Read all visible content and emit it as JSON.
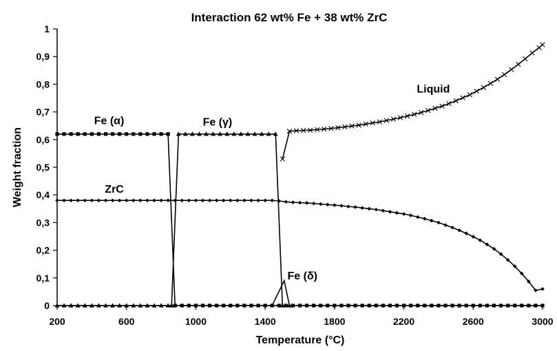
{
  "chart_data": {
    "type": "line",
    "title": "Interaction 62 wt% Fe + 38 wt% ZrC",
    "xlabel": "Temperature (°C)",
    "ylabel": "Weight fraction",
    "xlim": [
      200,
      3000
    ],
    "ylim": [
      0,
      1
    ],
    "x_ticks": [
      "200",
      "600",
      "1000",
      "1400",
      "1800",
      "2200",
      "2600",
      "3000"
    ],
    "y_ticks": [
      "0",
      "0,1",
      "0,2",
      "0,3",
      "0,4",
      "0,5",
      "0,6",
      "0,7",
      "0,8",
      "0,9",
      "1"
    ],
    "grid": false,
    "legend": "none",
    "series": [
      {
        "name": "Fe (α)",
        "marker": "square",
        "points": [
          [
            200,
            0.62
          ],
          [
            240,
            0.62
          ],
          [
            280,
            0.62
          ],
          [
            320,
            0.62
          ],
          [
            360,
            0.62
          ],
          [
            400,
            0.62
          ],
          [
            440,
            0.62
          ],
          [
            480,
            0.62
          ],
          [
            520,
            0.62
          ],
          [
            560,
            0.62
          ],
          [
            600,
            0.62
          ],
          [
            640,
            0.62
          ],
          [
            680,
            0.62
          ],
          [
            720,
            0.62
          ],
          [
            760,
            0.62
          ],
          [
            800,
            0.62
          ],
          [
            840,
            0.62
          ],
          [
            880,
            0
          ],
          [
            920,
            0
          ],
          [
            960,
            0
          ],
          [
            1000,
            0
          ],
          [
            1040,
            0
          ],
          [
            1080,
            0
          ],
          [
            1120,
            0
          ],
          [
            1160,
            0
          ],
          [
            1200,
            0
          ],
          [
            1240,
            0
          ],
          [
            1280,
            0
          ],
          [
            1320,
            0
          ],
          [
            1360,
            0
          ],
          [
            1400,
            0
          ],
          [
            1440,
            0
          ],
          [
            1480,
            0
          ],
          [
            1520,
            0
          ],
          [
            1560,
            0
          ],
          [
            1600,
            0
          ],
          [
            1640,
            0
          ],
          [
            1680,
            0
          ],
          [
            1720,
            0
          ],
          [
            1760,
            0
          ],
          [
            1800,
            0
          ],
          [
            1840,
            0
          ],
          [
            1880,
            0
          ],
          [
            1920,
            0
          ],
          [
            1960,
            0
          ],
          [
            2000,
            0
          ],
          [
            2040,
            0
          ],
          [
            2080,
            0
          ],
          [
            2120,
            0
          ],
          [
            2160,
            0
          ],
          [
            2200,
            0
          ],
          [
            2240,
            0
          ],
          [
            2280,
            0
          ],
          [
            2320,
            0
          ],
          [
            2360,
            0
          ],
          [
            2400,
            0
          ],
          [
            2440,
            0
          ],
          [
            2480,
            0
          ],
          [
            2520,
            0
          ],
          [
            2560,
            0
          ],
          [
            2600,
            0
          ],
          [
            2640,
            0
          ],
          [
            2680,
            0
          ],
          [
            2720,
            0
          ],
          [
            2760,
            0
          ],
          [
            2800,
            0
          ],
          [
            2840,
            0
          ],
          [
            2880,
            0
          ],
          [
            2920,
            0
          ],
          [
            2960,
            0
          ],
          [
            3000,
            0
          ]
        ]
      },
      {
        "name": "Fe (γ)",
        "marker": "triangle",
        "points": [
          [
            200,
            0
          ],
          [
            240,
            0
          ],
          [
            280,
            0
          ],
          [
            320,
            0
          ],
          [
            360,
            0
          ],
          [
            400,
            0
          ],
          [
            440,
            0
          ],
          [
            480,
            0
          ],
          [
            520,
            0
          ],
          [
            560,
            0
          ],
          [
            600,
            0
          ],
          [
            640,
            0
          ],
          [
            680,
            0
          ],
          [
            720,
            0
          ],
          [
            760,
            0
          ],
          [
            800,
            0
          ],
          [
            840,
            0
          ],
          [
            860,
            0
          ],
          [
            900,
            0.62
          ],
          [
            940,
            0.62
          ],
          [
            980,
            0.62
          ],
          [
            1020,
            0.62
          ],
          [
            1060,
            0.62
          ],
          [
            1100,
            0.62
          ],
          [
            1140,
            0.62
          ],
          [
            1180,
            0.62
          ],
          [
            1220,
            0.62
          ],
          [
            1260,
            0.62
          ],
          [
            1300,
            0.62
          ],
          [
            1340,
            0.62
          ],
          [
            1380,
            0.62
          ],
          [
            1420,
            0.62
          ],
          [
            1460,
            0.62
          ],
          [
            1500,
            0
          ],
          [
            1540,
            0
          ]
        ]
      },
      {
        "name": "ZrC",
        "marker": "diamond",
        "points": [
          [
            200,
            0.38
          ],
          [
            240,
            0.38
          ],
          [
            280,
            0.38
          ],
          [
            320,
            0.38
          ],
          [
            360,
            0.38
          ],
          [
            400,
            0.38
          ],
          [
            440,
            0.38
          ],
          [
            480,
            0.38
          ],
          [
            520,
            0.38
          ],
          [
            560,
            0.38
          ],
          [
            600,
            0.38
          ],
          [
            640,
            0.38
          ],
          [
            680,
            0.38
          ],
          [
            720,
            0.38
          ],
          [
            760,
            0.38
          ],
          [
            800,
            0.38
          ],
          [
            840,
            0.38
          ],
          [
            880,
            0.38
          ],
          [
            920,
            0.38
          ],
          [
            960,
            0.38
          ],
          [
            1000,
            0.38
          ],
          [
            1040,
            0.38
          ],
          [
            1080,
            0.38
          ],
          [
            1120,
            0.38
          ],
          [
            1160,
            0.38
          ],
          [
            1200,
            0.38
          ],
          [
            1240,
            0.38
          ],
          [
            1280,
            0.38
          ],
          [
            1320,
            0.38
          ],
          [
            1360,
            0.38
          ],
          [
            1400,
            0.38
          ],
          [
            1440,
            0.38
          ],
          [
            1480,
            0.378
          ],
          [
            1520,
            0.375
          ],
          [
            1560,
            0.373
          ],
          [
            1600,
            0.372
          ],
          [
            1640,
            0.371
          ],
          [
            1680,
            0.369
          ],
          [
            1720,
            0.367
          ],
          [
            1760,
            0.365
          ],
          [
            1800,
            0.363
          ],
          [
            1840,
            0.361
          ],
          [
            1880,
            0.358
          ],
          [
            1920,
            0.356
          ],
          [
            1960,
            0.353
          ],
          [
            2000,
            0.35
          ],
          [
            2040,
            0.347
          ],
          [
            2080,
            0.343
          ],
          [
            2120,
            0.339
          ],
          [
            2160,
            0.335
          ],
          [
            2200,
            0.331
          ],
          [
            2240,
            0.326
          ],
          [
            2280,
            0.32
          ],
          [
            2320,
            0.314
          ],
          [
            2360,
            0.307
          ],
          [
            2400,
            0.3
          ],
          [
            2440,
            0.291
          ],
          [
            2480,
            0.282
          ],
          [
            2520,
            0.272
          ],
          [
            2560,
            0.261
          ],
          [
            2600,
            0.249
          ],
          [
            2640,
            0.236
          ],
          [
            2680,
            0.221
          ],
          [
            2720,
            0.205
          ],
          [
            2760,
            0.186
          ],
          [
            2800,
            0.165
          ],
          [
            2840,
            0.142
          ],
          [
            2880,
            0.116
          ],
          [
            2920,
            0.087
          ],
          [
            2960,
            0.055
          ],
          [
            3000,
            0.06
          ]
        ]
      },
      {
        "name": "Fe (δ)",
        "marker": "none",
        "points": [
          [
            1440,
            0
          ],
          [
            1510,
            0.09
          ],
          [
            1540,
            0
          ]
        ]
      },
      {
        "name": "Liquid",
        "marker": "x",
        "points": [
          [
            1500,
            0.53
          ],
          [
            1540,
            0.63
          ],
          [
            1580,
            0.632
          ],
          [
            1620,
            0.633
          ],
          [
            1660,
            0.634
          ],
          [
            1700,
            0.636
          ],
          [
            1740,
            0.638
          ],
          [
            1780,
            0.64
          ],
          [
            1820,
            0.643
          ],
          [
            1860,
            0.646
          ],
          [
            1900,
            0.649
          ],
          [
            1940,
            0.652
          ],
          [
            1980,
            0.656
          ],
          [
            2020,
            0.66
          ],
          [
            2060,
            0.664
          ],
          [
            2100,
            0.669
          ],
          [
            2140,
            0.674
          ],
          [
            2180,
            0.679
          ],
          [
            2220,
            0.685
          ],
          [
            2260,
            0.691
          ],
          [
            2300,
            0.698
          ],
          [
            2340,
            0.705
          ],
          [
            2380,
            0.713
          ],
          [
            2420,
            0.721
          ],
          [
            2460,
            0.73
          ],
          [
            2500,
            0.74
          ],
          [
            2540,
            0.751
          ],
          [
            2580,
            0.762
          ],
          [
            2620,
            0.775
          ],
          [
            2660,
            0.788
          ],
          [
            2700,
            0.803
          ],
          [
            2740,
            0.818
          ],
          [
            2780,
            0.835
          ],
          [
            2820,
            0.853
          ],
          [
            2860,
            0.872
          ],
          [
            2900,
            0.892
          ],
          [
            2940,
            0.913
          ],
          [
            2980,
            0.932
          ],
          [
            3000,
            0.943
          ]
        ]
      }
    ],
    "series_labels": [
      {
        "text": "Fe (α)",
        "x": 500,
        "y": 0.655
      },
      {
        "text": "Fe (γ)",
        "x": 1125,
        "y": 0.65
      },
      {
        "text": "ZrC",
        "x": 530,
        "y": 0.408
      },
      {
        "text": "Fe (δ)",
        "x": 1615,
        "y": 0.095
      },
      {
        "text": "Liquid",
        "x": 2370,
        "y": 0.77
      }
    ]
  }
}
